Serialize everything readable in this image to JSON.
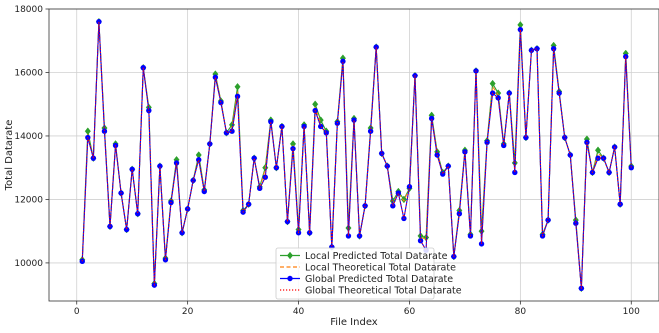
{
  "chart_data": {
    "type": "line",
    "title": "",
    "xlabel": "File Index",
    "ylabel": "Total Datarate",
    "xlim": [
      -5,
      105
    ],
    "ylim": [
      8800,
      18000
    ],
    "xticks": [
      0,
      20,
      40,
      60,
      80,
      100
    ],
    "yticks": [
      10000,
      12000,
      14000,
      16000,
      18000
    ],
    "grid": true,
    "legend_position": "lower-center",
    "x": [
      1,
      2,
      3,
      4,
      5,
      6,
      7,
      8,
      9,
      10,
      11,
      12,
      13,
      14,
      15,
      16,
      17,
      18,
      19,
      20,
      21,
      22,
      23,
      24,
      25,
      26,
      27,
      28,
      29,
      30,
      31,
      32,
      33,
      34,
      35,
      36,
      37,
      38,
      39,
      40,
      41,
      42,
      43,
      44,
      45,
      46,
      47,
      48,
      49,
      50,
      51,
      52,
      53,
      54,
      55,
      56,
      57,
      58,
      59,
      60,
      61,
      62,
      63,
      64,
      65,
      66,
      67,
      68,
      69,
      70,
      71,
      72,
      73,
      74,
      75,
      76,
      77,
      78,
      79,
      80,
      81,
      82,
      83,
      84,
      85,
      86,
      87,
      88,
      89,
      90,
      91,
      92,
      93,
      94,
      95,
      96,
      97,
      98,
      99,
      100
    ],
    "series": [
      {
        "name": "Local Predicted Total Datarate",
        "color": "#2ca02c",
        "marker": "diamond",
        "linestyle": "solid",
        "values": [
          10100,
          14150,
          13300,
          17600,
          14250,
          11150,
          13750,
          12200,
          11050,
          12950,
          11550,
          16150,
          14900,
          9350,
          13050,
          10150,
          11950,
          13250,
          10950,
          11700,
          12600,
          13400,
          12300,
          13750,
          15950,
          15100,
          14100,
          14350,
          15550,
          11650,
          11850,
          13300,
          12400,
          13000,
          14500,
          13000,
          14300,
          11300,
          13750,
          11050,
          14350,
          10950,
          15000,
          14500,
          14150,
          10500,
          14450,
          16450,
          11100,
          14550,
          10850,
          11800,
          14250,
          16800,
          13450,
          13050,
          11950,
          12250,
          12000,
          12350,
          15900,
          10850,
          10800,
          14650,
          13500,
          12850,
          13050,
          10200,
          11650,
          13550,
          10900,
          16050,
          11000,
          13850,
          15650,
          15350,
          13750,
          15350,
          13150,
          17500,
          13950,
          16700,
          16750,
          10900,
          11350,
          16850,
          15400,
          13950,
          13400,
          11350,
          9200,
          13900,
          12850,
          13550,
          13300,
          12850,
          13650,
          11850,
          16600,
          13050
        ]
      },
      {
        "name": "Local Theoretical Total Datarate",
        "color": "#ff7f0e",
        "marker": "none",
        "linestyle": "dashed",
        "values": [
          10100,
          14050,
          13300,
          17600,
          14200,
          11150,
          13750,
          12200,
          11050,
          12950,
          11550,
          16150,
          14850,
          9350,
          13050,
          10100,
          11900,
          13200,
          10950,
          11700,
          12600,
          13300,
          12250,
          13750,
          15900,
          15100,
          14100,
          14250,
          15400,
          11600,
          11850,
          13300,
          12350,
          12950,
          14450,
          13000,
          14300,
          11300,
          13700,
          11000,
          14300,
          10950,
          14900,
          14400,
          14100,
          10500,
          14400,
          16400,
          11000,
          14500,
          10850,
          11800,
          14200,
          16800,
          13450,
          13050,
          11850,
          12200,
          11950,
          12350,
          15900,
          10800,
          10750,
          14600,
          13500,
          12800,
          13050,
          10200,
          11600,
          13500,
          10850,
          16050,
          10850,
          13800,
          15550,
          15300,
          13700,
          15350,
          13000,
          17400,
          13950,
          16700,
          16750,
          10850,
          11350,
          16800,
          15350,
          13950,
          13400,
          11300,
          9200,
          13850,
          12850,
          13450,
          13300,
          12850,
          13650,
          11850,
          16550,
          13050
        ]
      },
      {
        "name": "Global Predicted Total Datarate",
        "color": "#0000ff",
        "marker": "circle",
        "linestyle": "solid",
        "values": [
          10050,
          13950,
          13300,
          17600,
          14150,
          11150,
          13700,
          12200,
          11050,
          12950,
          11550,
          16150,
          14800,
          9300,
          13050,
          10100,
          11900,
          13150,
          10950,
          11700,
          12600,
          13250,
          12250,
          13750,
          15850,
          15050,
          14100,
          14150,
          15250,
          11600,
          11850,
          13300,
          12350,
          12700,
          14450,
          13000,
          14300,
          11300,
          13600,
          10950,
          14300,
          10950,
          14800,
          14300,
          14100,
          10500,
          14400,
          16350,
          10850,
          14500,
          10850,
          11800,
          14150,
          16800,
          13450,
          13050,
          11800,
          12200,
          11400,
          12400,
          15900,
          10700,
          10400,
          14550,
          13400,
          12800,
          13050,
          10200,
          11550,
          13500,
          10850,
          16050,
          10600,
          13800,
          15350,
          15200,
          13700,
          15350,
          12850,
          17350,
          13950,
          16700,
          16750,
          10850,
          11350,
          16750,
          15350,
          13950,
          13400,
          11250,
          9200,
          13800,
          12850,
          13300,
          13300,
          12850,
          13650,
          11850,
          16500,
          13000
        ]
      },
      {
        "name": "Global Theoretical Total Datarate",
        "color": "#ff0000",
        "marker": "none",
        "linestyle": "dotted",
        "values": [
          10050,
          13950,
          13300,
          17600,
          14150,
          11150,
          13700,
          12200,
          11050,
          12950,
          11550,
          16150,
          14800,
          9300,
          13050,
          10100,
          11900,
          13150,
          10950,
          11700,
          12600,
          13250,
          12250,
          13750,
          15850,
          15050,
          14100,
          14150,
          15250,
          11600,
          11850,
          13300,
          12350,
          12700,
          14450,
          13000,
          14300,
          11300,
          13600,
          10950,
          14300,
          10950,
          14800,
          14300,
          14100,
          10500,
          14400,
          16350,
          10850,
          14500,
          10850,
          11800,
          14150,
          16800,
          13450,
          13050,
          11800,
          12200,
          11400,
          12400,
          15900,
          10700,
          10400,
          14550,
          13400,
          12800,
          13050,
          10200,
          11550,
          13500,
          10850,
          16050,
          10600,
          13800,
          15350,
          15200,
          13700,
          15350,
          12850,
          17350,
          13950,
          16700,
          16750,
          10850,
          11350,
          16750,
          15350,
          13950,
          13400,
          11250,
          9200,
          13800,
          12850,
          13300,
          13300,
          12850,
          13650,
          11850,
          16500,
          13000
        ]
      }
    ]
  }
}
